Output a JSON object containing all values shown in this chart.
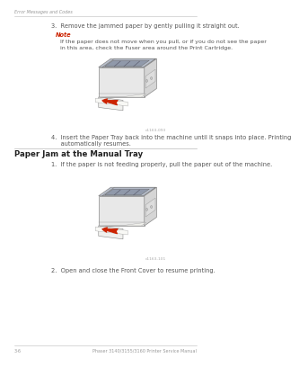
{
  "bg_color": "#ffffff",
  "header_text": "Error Messages and Codes",
  "header_color": "#999999",
  "footer_left": "3-6",
  "footer_right": "Phaser 3140/3155/3160 Printer Service Manual",
  "footer_color": "#999999",
  "step3_text": "3.  Remove the jammed paper by gently pulling it straight out.",
  "note_label": "Note",
  "note_label_color": "#cc2200",
  "note_line1": "If the paper does not move when you pull, or if you do not see the paper",
  "note_line2": "in this area, check the Fuser area around the Print Cartridge.",
  "step4_line1": "4.  Insert the Paper Tray back into the machine until it snaps into place. Printing",
  "step4_line2": "     automatically resumes.",
  "section_title": "Paper Jam at the Manual Tray",
  "manual_step1": "1.  If the paper is not feeding properly, pull the paper out of the machine.",
  "manual_step2": "2.  Open and close the Front Cover to resume printing.",
  "text_color": "#555555",
  "text_fontsize": 4.8,
  "note_fontsize": 4.5,
  "section_fontsize": 6.2,
  "line_color": "#bbbbbb",
  "arrow_color": "#cc2200",
  "img_caption1": "c1163-093",
  "img_caption2": "c1163-101",
  "printer_body": "#e8e8e8",
  "printer_top": "#b8bfcc",
  "printer_edge": "#888888",
  "printer_side": "#d5d5d5",
  "paper_color": "#f0f0ec"
}
